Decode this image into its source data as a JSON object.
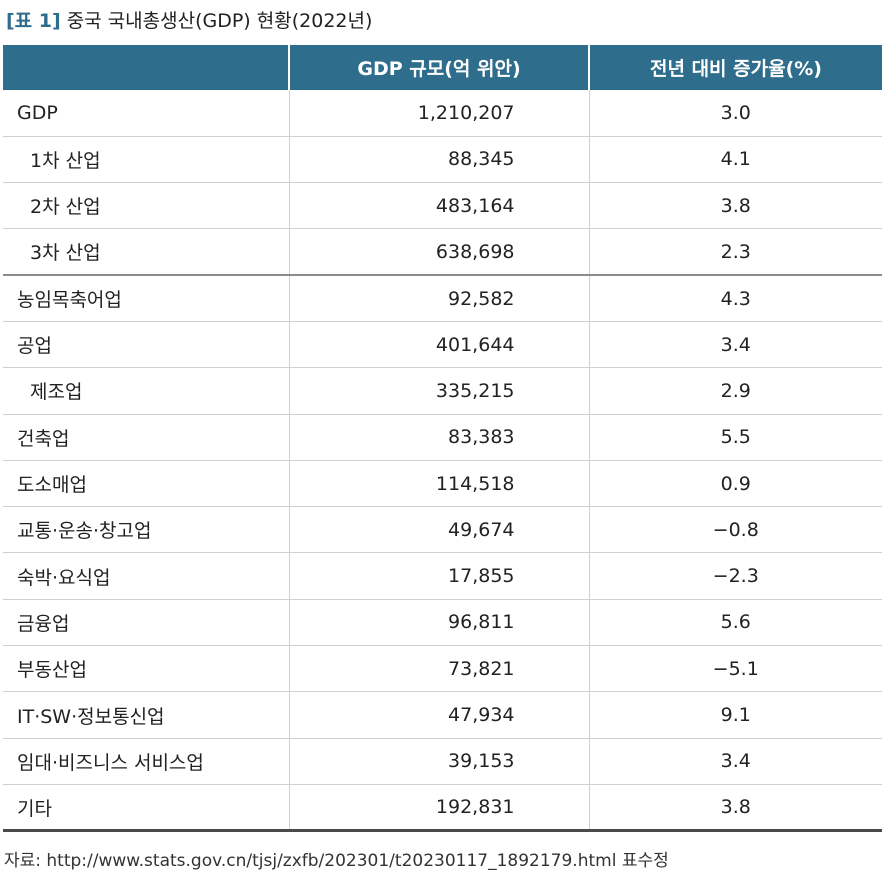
{
  "title": {
    "tag": "[표 1]",
    "text": "중국 국내총생산(GDP) 현황(2022년)"
  },
  "table": {
    "headers": [
      "",
      "GDP 규모(억 위안)",
      "전년 대비 증가율(%)"
    ],
    "rows": [
      {
        "name": "GDP",
        "gdp": "1,210,207",
        "rate": "3.0"
      },
      {
        "name": "1차 산업",
        "gdp": "88,345",
        "rate": "4.1"
      },
      {
        "name": "2차 산업",
        "gdp": "483,164",
        "rate": "3.8"
      },
      {
        "name": "3차 산업",
        "gdp": "638,698",
        "rate": "2.3"
      },
      {
        "name": "농임목축어업",
        "gdp": "92,582",
        "rate": "4.3"
      },
      {
        "name": "공업",
        "gdp": "401,644",
        "rate": "3.4"
      },
      {
        "name": "제조업",
        "gdp": "335,215",
        "rate": "2.9"
      },
      {
        "name": "건축업",
        "gdp": "83,383",
        "rate": "5.5"
      },
      {
        "name": "도소매업",
        "gdp": "114,518",
        "rate": "0.9"
      },
      {
        "name": "교통·운송·창고업",
        "gdp": "49,674",
        "rate": "−0.8"
      },
      {
        "name": "숙박·요식업",
        "gdp": "17,855",
        "rate": "−2.3"
      },
      {
        "name": "금융업",
        "gdp": "96,811",
        "rate": "5.6"
      },
      {
        "name": "부동산업",
        "gdp": "73,821",
        "rate": "−5.1"
      },
      {
        "name": "IT·SW·정보통신업",
        "gdp": "47,934",
        "rate": "9.1"
      },
      {
        "name": "임대·비즈니스 서비스업",
        "gdp": "39,153",
        "rate": "3.4"
      },
      {
        "name": "기타",
        "gdp": "192,831",
        "rate": "3.8"
      }
    ]
  },
  "source": "자료: http://www.stats.gov.cn/tjsj/zxfb/202301/t20230117_1892179.html 표수정",
  "colors": {
    "header_bg": "#2f6d8c",
    "title_tag": "#2f6d8c"
  }
}
